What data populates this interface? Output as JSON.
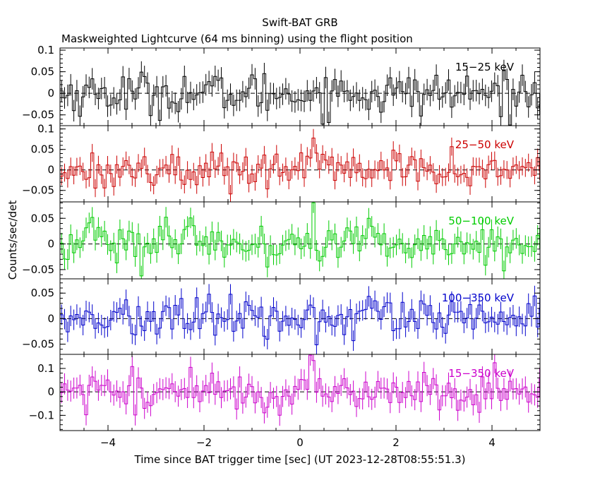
{
  "title": "Swift-BAT GRB",
  "subtitle": "Maskweighted Lightcurve (64 ms binning) using the flight position",
  "xlabel": "Time since BAT trigger time [sec] (UT 2023-12-28T08:55:51.3)",
  "ylabel": "Counts/sec/det",
  "chart_data": [
    {
      "type": "line",
      "panel": "15-25 keV",
      "label": "15−25 keV",
      "color": "#000000",
      "xlim": [
        -5,
        5
      ],
      "ylim": [
        -0.075,
        0.105
      ],
      "yticks": [
        -0.05,
        0,
        0.05,
        0.1
      ],
      "yticklabels": [
        "−0.05",
        "0",
        "0.05",
        "0.1"
      ],
      "bin_width": 0.064,
      "noise_sigma": 0.025,
      "err": 0.025,
      "bursts": []
    },
    {
      "type": "line",
      "panel": "25-50 keV",
      "label": "25−50 keV",
      "color": "#cc0000",
      "xlim": [
        -5,
        5
      ],
      "ylim": [
        -0.078,
        0.108
      ],
      "yticks": [
        -0.05,
        0,
        0.05,
        0.1
      ],
      "yticklabels": [
        "−0.05",
        "0",
        "0.05",
        "0.1"
      ],
      "bin_width": 0.064,
      "noise_sigma": 0.022,
      "err": 0.022,
      "bursts": [
        [
          0.25,
          0.06,
          0.12
        ]
      ]
    },
    {
      "type": "line",
      "panel": "50-100 keV",
      "label": "50−100 keV",
      "color": "#00cc00",
      "xlim": [
        -5,
        5
      ],
      "ylim": [
        -0.068,
        0.082
      ],
      "yticks": [
        -0.05,
        0,
        0.05
      ],
      "yticklabels": [
        "−0.05",
        "0",
        "0.05"
      ],
      "bin_width": 0.064,
      "noise_sigma": 0.02,
      "err": 0.02,
      "bursts": [
        [
          -4.35,
          0.045,
          0.12
        ],
        [
          1.5,
          0.03,
          0.15
        ]
      ]
    },
    {
      "type": "line",
      "panel": "100-350 keV",
      "label": "100−350 keV",
      "color": "#0000cc",
      "xlim": [
        -5,
        5
      ],
      "ylim": [
        -0.07,
        0.078
      ],
      "yticks": [
        -0.05,
        0,
        0.05
      ],
      "yticklabels": [
        "−0.05",
        "0",
        "0.05"
      ],
      "bin_width": 0.064,
      "noise_sigma": 0.02,
      "err": 0.02,
      "bursts": []
    },
    {
      "type": "line",
      "panel": "15-350 keV",
      "label": "15−350 keV",
      "color": "#cc00cc",
      "xlim": [
        -5,
        5
      ],
      "ylim": [
        -0.165,
        0.16
      ],
      "yticks": [
        -0.1,
        0,
        0.1
      ],
      "yticklabels": [
        "−0.1",
        "0",
        "0.1"
      ],
      "bin_width": 0.064,
      "noise_sigma": 0.045,
      "err": 0.045,
      "bursts": [
        [
          -4.35,
          0.06,
          0.12
        ],
        [
          0.25,
          0.05,
          0.12
        ]
      ]
    }
  ],
  "xticks": [
    -4,
    -2,
    0,
    2,
    4
  ],
  "xticklabels": [
    "−4",
    "−2",
    "0",
    "2",
    "4"
  ]
}
